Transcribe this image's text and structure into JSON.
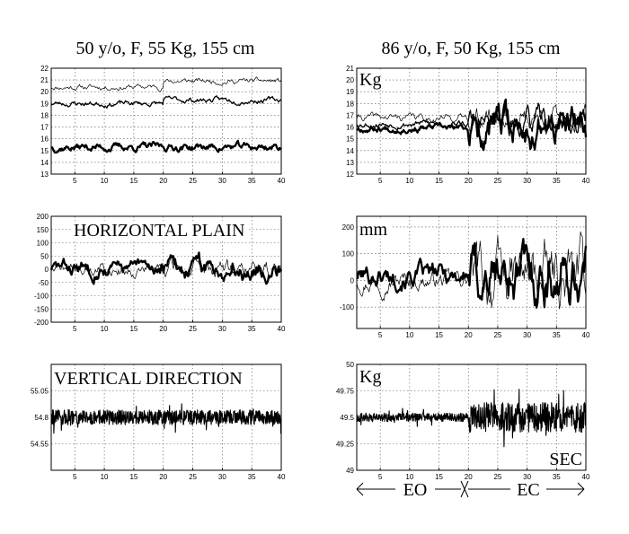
{
  "columns": [
    {
      "title": "50 y/o, F, 55 Kg, 155 cm"
    },
    {
      "title": "86 y/o, F, 50 Kg, 155 cm"
    }
  ],
  "phase_axis": {
    "left": "EO",
    "right": "EC"
  },
  "chart_data": [
    {
      "type": "line",
      "xlim": [
        1,
        40
      ],
      "ylim": [
        13,
        22
      ],
      "xticks": [
        5,
        10,
        15,
        20,
        25,
        30,
        35,
        40
      ],
      "yticks": [
        13,
        14,
        15,
        16,
        17,
        18,
        19,
        20,
        21,
        22
      ],
      "ytick_labels": [
        "13",
        "14",
        "15",
        "16",
        "17",
        "18",
        "19",
        "20",
        "21",
        "22"
      ],
      "grid": true,
      "label": "",
      "series": [
        {
          "style": "thin",
          "base": 20.4,
          "amp": 0.25,
          "shift": 0.5,
          "shiftAt": 20,
          "seed": 11
        },
        {
          "style": "medium",
          "base": 19.0,
          "amp": 0.25,
          "shift": 0.3,
          "shiftAt": 20,
          "seed": 23
        },
        {
          "style": "thick",
          "base": 15.3,
          "amp": 0.35,
          "shift": 0,
          "shiftAt": 20,
          "seed": 37
        }
      ]
    },
    {
      "type": "line",
      "xlim": [
        1,
        40
      ],
      "ylim": [
        12,
        21
      ],
      "xticks": [
        5,
        10,
        15,
        20,
        25,
        30,
        35,
        40
      ],
      "yticks": [
        12,
        13,
        14,
        15,
        16,
        17,
        18,
        19,
        20,
        21
      ],
      "ytick_labels": [
        "12",
        "13",
        "14",
        "15",
        "16",
        "17",
        "18",
        "19",
        "20",
        "21"
      ],
      "grid": true,
      "label": "Kg",
      "series": [
        {
          "style": "thin",
          "base": 16.8,
          "amp": 0.35,
          "ampEC": 1.0,
          "seed": 41
        },
        {
          "style": "medium",
          "base": 16.3,
          "amp": 0.3,
          "ampEC": 1.2,
          "seed": 53
        },
        {
          "style": "thick",
          "base": 15.9,
          "amp": 0.3,
          "ampEC": 1.6,
          "seed": 67
        }
      ]
    },
    {
      "type": "line",
      "xlim": [
        1,
        40
      ],
      "ylim": [
        -200,
        200
      ],
      "xticks": [
        5,
        10,
        15,
        20,
        25,
        30,
        35,
        40
      ],
      "yticks": [
        -200,
        -150,
        -100,
        -50,
        0,
        50,
        100,
        150,
        200
      ],
      "ytick_labels": [
        "-200",
        "-150",
        "-100",
        "-50",
        "0",
        "50",
        "100",
        "150",
        "200"
      ],
      "grid": true,
      "label": "HORIZONTAL PLAIN",
      "series": [
        {
          "style": "thin",
          "base": 0,
          "amp": 25,
          "ampEC": 35,
          "seed": 71
        },
        {
          "style": "thick",
          "base": 5,
          "amp": 28,
          "ampEC": 40,
          "seed": 83
        }
      ]
    },
    {
      "type": "line",
      "xlim": [
        1,
        40
      ],
      "ylim": [
        -180,
        240
      ],
      "xticks": [
        5,
        10,
        15,
        20,
        25,
        30,
        35,
        40
      ],
      "yticks": [
        -100,
        0,
        100,
        200
      ],
      "ytick_labels": [
        "-100",
        "0",
        "100",
        "200"
      ],
      "grid": true,
      "label": "mm",
      "series": [
        {
          "style": "thin",
          "base": 0,
          "amp": 35,
          "ampEC": 120,
          "seed": 97
        },
        {
          "style": "thick",
          "base": 20,
          "amp": 40,
          "ampEC": 110,
          "seed": 101
        }
      ]
    },
    {
      "type": "line",
      "xlim": [
        1,
        40
      ],
      "ylim": [
        54.3,
        55.3
      ],
      "xticks": [
        5,
        10,
        15,
        20,
        25,
        30,
        35,
        40
      ],
      "yticks": [
        54.55,
        54.8,
        55.05
      ],
      "ytick_labels": [
        "54.55",
        "54.8",
        "55.05"
      ],
      "grid": true,
      "label": "VERTICAL DIRECTION",
      "series": [
        {
          "style": "noise",
          "base": 54.8,
          "amp": 0.07,
          "ampEC": 0.07,
          "seed": 113
        }
      ]
    },
    {
      "type": "line",
      "xlim": [
        1,
        40
      ],
      "ylim": [
        49,
        50
      ],
      "xticks": [
        5,
        10,
        15,
        20,
        25,
        30,
        35,
        40
      ],
      "yticks": [
        49,
        49.25,
        49.5,
        49.75,
        50
      ],
      "ytick_labels": [
        "49",
        "49.25",
        "49.5",
        "49.75",
        "50"
      ],
      "grid": true,
      "label": "Kg",
      "xlabel": "SEC",
      "series": [
        {
          "style": "noise",
          "base": 49.5,
          "amp": 0.04,
          "ampEC": 0.14,
          "seed": 127
        }
      ]
    }
  ]
}
